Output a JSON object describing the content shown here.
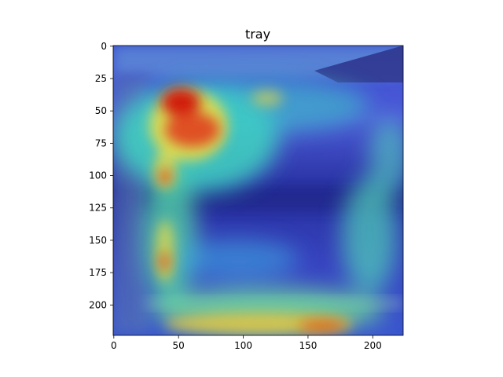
{
  "figure": {
    "title": "tray"
  },
  "chart_data": {
    "type": "heatmap",
    "title": "tray",
    "xlabel": "",
    "ylabel": "",
    "xlim": [
      0,
      224
    ],
    "ylim": [
      224,
      0
    ],
    "y_inverted": true,
    "grid": false,
    "colormap": "jet",
    "x_ticks": [
      0,
      50,
      100,
      150,
      200
    ],
    "y_ticks": [
      0,
      25,
      50,
      75,
      100,
      125,
      150,
      175,
      200
    ],
    "hotspots": [
      {
        "x": 50,
        "y": 42,
        "intensity": 1.0
      },
      {
        "x": 65,
        "y": 68,
        "intensity": 0.9
      },
      {
        "x": 40,
        "y": 100,
        "intensity": 0.85
      },
      {
        "x": 38,
        "y": 167,
        "intensity": 0.8
      },
      {
        "x": 120,
        "y": 40,
        "intensity": 0.5
      },
      {
        "x": 175,
        "y": 218,
        "intensity": 0.7
      },
      {
        "x": 95,
        "y": 218,
        "intensity": 0.6
      },
      {
        "x": 200,
        "y": 150,
        "intensity": 0.45
      },
      {
        "x": 215,
        "y": 75,
        "intensity": 0.4
      }
    ]
  }
}
